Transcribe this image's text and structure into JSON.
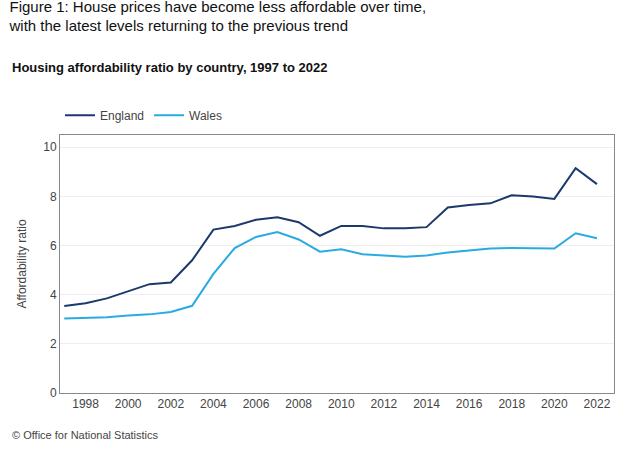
{
  "chart_data": {
    "type": "line",
    "title": "Figure 1: House prices have become less affordable over time,\nwith the latest levels returning to the previous trend",
    "subtitle": "Housing affordability ratio by country, 1997 to 2022",
    "y_label": "Affordability ratio",
    "annotations": [
      "© Office for National Statistics"
    ],
    "x": [
      1997,
      1998,
      1999,
      2000,
      2001,
      2002,
      2003,
      2004,
      2005,
      2006,
      2007,
      2008,
      2009,
      2010,
      2011,
      2012,
      2013,
      2014,
      2015,
      2016,
      2017,
      2018,
      2019,
      2020,
      2021,
      2022
    ],
    "series": [
      {
        "name": "England",
        "color": "#1b3a6b",
        "values": [
          3.54,
          3.65,
          3.85,
          4.13,
          4.43,
          4.5,
          5.4,
          6.65,
          6.8,
          7.05,
          7.15,
          6.95,
          6.4,
          6.8,
          6.8,
          6.7,
          6.7,
          6.75,
          7.55,
          7.65,
          7.72,
          8.05,
          8.0,
          7.9,
          9.15,
          8.5
        ]
      },
      {
        "name": "Wales",
        "color": "#29abe2",
        "values": [
          3.03,
          3.05,
          3.08,
          3.15,
          3.2,
          3.3,
          3.55,
          4.85,
          5.9,
          6.35,
          6.55,
          6.25,
          5.75,
          5.85,
          5.65,
          5.6,
          5.55,
          5.6,
          5.72,
          5.8,
          5.88,
          5.9,
          5.9,
          5.88,
          6.5,
          6.3
        ]
      }
    ],
    "xlim": [
      1996.8,
      2022.8
    ],
    "xticks": [
      1998,
      2000,
      2002,
      2004,
      2006,
      2008,
      2010,
      2012,
      2014,
      2016,
      2018,
      2020,
      2022
    ],
    "ylim": [
      0,
      10.5
    ],
    "yticks": [
      0,
      2,
      4,
      6,
      8,
      10
    ],
    "grid": true,
    "legend": "top left"
  }
}
